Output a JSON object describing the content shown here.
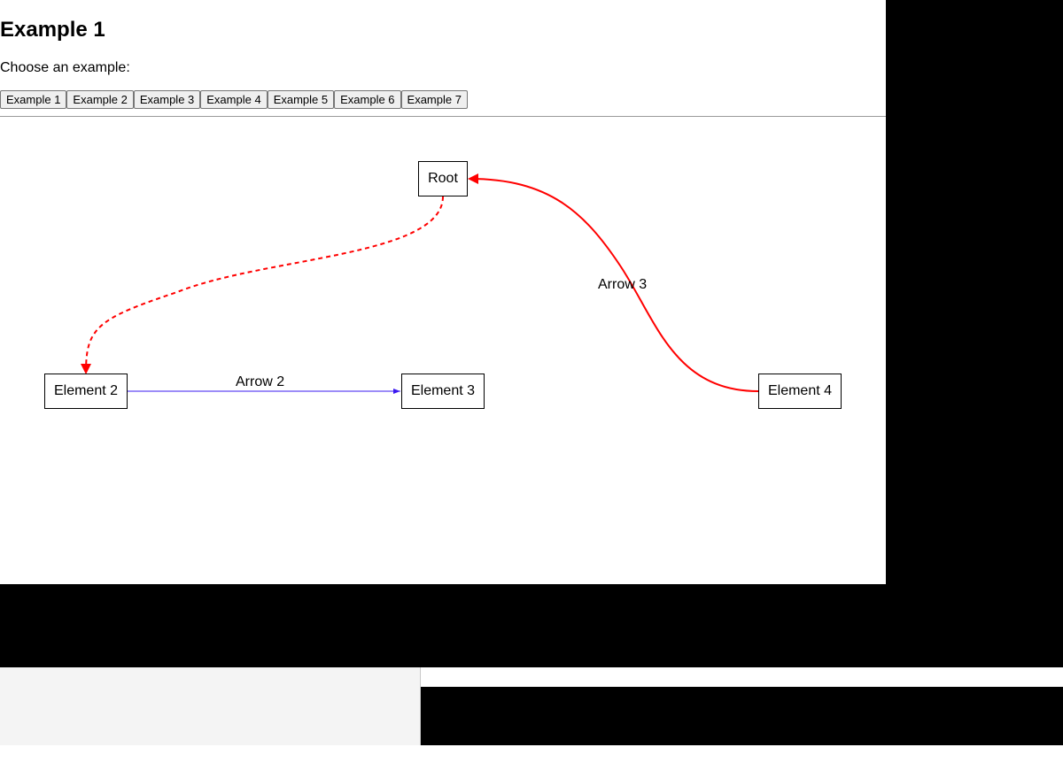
{
  "page_title": "Example 1",
  "prompt": "Choose an example:",
  "examples": [
    {
      "label": "Example 1"
    },
    {
      "label": "Example 2"
    },
    {
      "label": "Example 3"
    },
    {
      "label": "Example 4"
    },
    {
      "label": "Example 5"
    },
    {
      "label": "Example 6"
    },
    {
      "label": "Example 7"
    }
  ],
  "diagram": {
    "nodes": {
      "root": "Root",
      "element2": "Element 2",
      "element3": "Element 3",
      "element4": "Element 4"
    },
    "arrows": {
      "arrow2": "Arrow 2",
      "arrow3": "Arrow 3"
    },
    "colors": {
      "red": "#ff0000",
      "blue": "#3a18f0"
    }
  }
}
